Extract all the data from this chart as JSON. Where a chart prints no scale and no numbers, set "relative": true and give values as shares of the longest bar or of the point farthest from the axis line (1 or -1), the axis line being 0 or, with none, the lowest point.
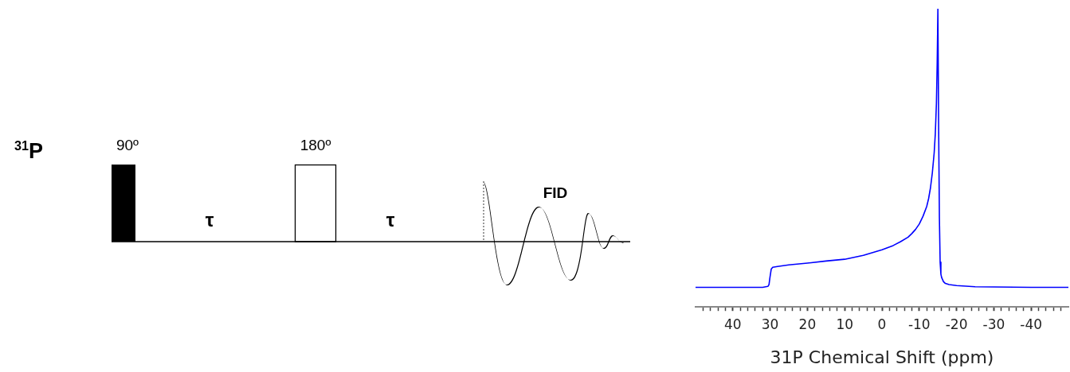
{
  "chart_data": [
    {
      "type": "other",
      "annotations": [
        "$^{31}$P",
        "90º",
        "180º",
        "τ",
        "τ",
        "FID"
      ]
    },
    {
      "type": "line",
      "xlabel": "31P Chemical Shift (ppm)",
      "relative": true,
      "xlim": [
        50,
        -50
      ],
      "xticks": [
        {
          "value": 48,
          "label": null
        },
        {
          "value": 46,
          "label": null
        },
        {
          "value": 44,
          "label": null
        },
        {
          "value": 42,
          "label": null
        },
        40,
        {
          "value": 38,
          "label": null
        },
        {
          "value": 36,
          "label": null
        },
        {
          "value": 34,
          "label": null
        },
        {
          "value": 32,
          "label": null
        },
        30,
        {
          "value": 28,
          "label": null
        },
        {
          "value": 26,
          "label": null
        },
        {
          "value": 24,
          "label": null
        },
        {
          "value": 22,
          "label": null
        },
        20,
        {
          "value": 18,
          "label": null
        },
        {
          "value": 16,
          "label": null
        },
        {
          "value": 14,
          "label": null
        },
        {
          "value": 12,
          "label": null
        },
        10,
        {
          "value": 8,
          "label": null
        },
        {
          "value": 6,
          "label": null
        },
        {
          "value": 4,
          "label": null
        },
        {
          "value": 2,
          "label": null
        },
        0,
        {
          "value": -2,
          "label": null
        },
        {
          "value": -4,
          "label": null
        },
        {
          "value": -6,
          "label": null
        },
        {
          "value": -8,
          "label": null
        },
        -10,
        {
          "value": -12,
          "label": null
        },
        {
          "value": -14,
          "label": null
        },
        {
          "value": -16,
          "label": null
        },
        {
          "value": -18,
          "label": null
        },
        -20,
        {
          "value": -22,
          "label": null
        },
        {
          "value": -24,
          "label": null
        },
        {
          "value": -26,
          "label": null
        },
        {
          "value": -28,
          "label": null
        },
        -30,
        {
          "value": -32,
          "label": null
        },
        {
          "value": -34,
          "label": null
        },
        {
          "value": -36,
          "label": null
        },
        {
          "value": -38,
          "label": null
        },
        -40,
        {
          "value": -42,
          "label": null
        },
        {
          "value": -44,
          "label": null
        },
        {
          "value": -46,
          "label": null
        },
        {
          "value": -48,
          "label": null
        }
      ],
      "grid": false,
      "legend": false,
      "marker": "none",
      "line_style": "solid",
      "x": [
        50,
        40,
        32,
        30.6,
        30.3,
        30,
        29.7,
        29.3,
        28,
        25,
        20,
        15,
        10,
        5,
        0,
        -3,
        -5,
        -7,
        -8,
        -9,
        -10,
        -11,
        -12,
        -12.5,
        -13,
        -13.5,
        -14,
        -14.3,
        -14.6,
        -14.8,
        -15,
        -15.2,
        -15.4,
        -15.6,
        -15.8,
        -16,
        -16.5,
        -17,
        -18,
        -20,
        -25,
        -30,
        -40,
        -50
      ],
      "series": [
        {
          "color": "#0000ff",
          "values": [
            0.066,
            0.066,
            0.066,
            0.069,
            0.075,
            0.103,
            0.127,
            0.133,
            0.136,
            0.141,
            0.147,
            0.154,
            0.16,
            0.173,
            0.192,
            0.206,
            0.219,
            0.234,
            0.246,
            0.26,
            0.278,
            0.304,
            0.337,
            0.363,
            0.399,
            0.449,
            0.517,
            0.58,
            0.682,
            0.813,
            1,
            0.6,
            0.3,
            0.15,
            0.11,
            0.099,
            0.085,
            0.079,
            0.075,
            0.072,
            0.068,
            0.067,
            0.066,
            0.066
          ]
        }
      ]
    }
  ]
}
